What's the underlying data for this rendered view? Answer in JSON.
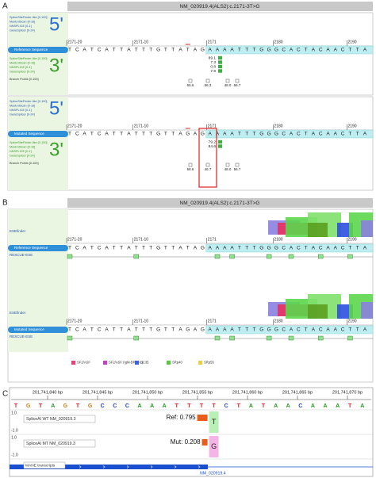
{
  "panel_a": {
    "label": "A",
    "title": "NM_020919.4(ALS2):c.2171-3T>G",
    "positions": [
      "2171-20",
      "2171-10",
      "2171",
      "2180",
      "2190"
    ],
    "reference": {
      "name": "Reference Sequence",
      "labels_5": [
        "SpliceSiteFinder-like [0-100]",
        "MaxEntScan [0-16]",
        "NNSPLICE [0-1]",
        "GeneSplicer [0-24]"
      ],
      "five_prime": "5'",
      "labels_3": [
        "SpliceSiteFinder-like [0-100]",
        "MaxEntScan [0-16]",
        "NNSPLICE [0-1]",
        "GeneSplicer [0-24]"
      ],
      "three_prime": "3'",
      "branch_label": "Branch Points [0-100]",
      "sequence": [
        "T",
        "C",
        "A",
        "T",
        "C",
        "A",
        "T",
        "T",
        "A",
        "T",
        "T",
        "T",
        "G",
        "T",
        "T",
        "A",
        "T",
        "A",
        "G",
        "A",
        "A",
        "A",
        "A",
        "T",
        "T",
        "T",
        "G",
        "G",
        "G",
        "C",
        "A",
        "C",
        "T",
        "A",
        "C",
        "A",
        "A",
        "C",
        "T",
        "T",
        "A"
      ],
      "scores": [
        "89.1",
        "7.3",
        "0.8",
        "7.9"
      ],
      "branch_points": [
        "65.6",
        "56.3",
        "48.0",
        "56.7"
      ]
    },
    "mutated": {
      "name": "Mutated Sequence",
      "labels_5": [
        "SpliceSiteFinder-like [0-100]",
        "MaxEntScan [0-16]",
        "NNSPLICE [0-1]",
        "GeneSplicer [0-24]"
      ],
      "five_prime": "5'",
      "labels_3": [
        "SpliceSiteFinder-like [0-100]",
        "MaxEntScan [0-16]",
        "NNSPLICE [0-1]",
        "GeneSplicer [0-24]"
      ],
      "three_prime": "3'",
      "branch_label": "Branch Points [0-100]",
      "sequence": [
        "T",
        "C",
        "A",
        "T",
        "C",
        "A",
        "T",
        "T",
        "A",
        "T",
        "T",
        "T",
        "G",
        "T",
        "T",
        "A",
        "G",
        "A",
        "G",
        "A",
        "A",
        "A",
        "A",
        "T",
        "T",
        "T",
        "G",
        "G",
        "G",
        "C",
        "A",
        "C",
        "T",
        "A",
        "C",
        "A",
        "A",
        "C",
        "T",
        "T",
        "A"
      ],
      "scores": [
        "79.2",
        "84.6"
      ],
      "branch_points": [
        "58.6",
        "46.7",
        "48.0",
        "56.7"
      ]
    }
  },
  "panel_b": {
    "label": "B",
    "title": "NM_020919.4(ALS2):c.2171-3T>G",
    "positions": [
      "2171-20",
      "2171-10",
      "2171",
      "2180",
      "2190"
    ],
    "reference": {
      "ese_label": "ESEfinder",
      "name": "Reference Sequence",
      "rescue_label": "RESCUE-ESE",
      "sequence": [
        "T",
        "C",
        "A",
        "T",
        "C",
        "A",
        "T",
        "T",
        "A",
        "T",
        "T",
        "T",
        "G",
        "T",
        "T",
        "A",
        "T",
        "A",
        "G",
        "A",
        "A",
        "A",
        "A",
        "T",
        "T",
        "T",
        "G",
        "G",
        "G",
        "C",
        "A",
        "C",
        "T",
        "A",
        "C",
        "A",
        "A",
        "C",
        "T",
        "T",
        "A"
      ]
    },
    "mutated": {
      "ese_label": "ESEfinder",
      "name": "Mutated Sequence",
      "rescue_label": "RESCUE-ESE",
      "sequence": [
        "T",
        "C",
        "A",
        "T",
        "C",
        "A",
        "T",
        "T",
        "A",
        "T",
        "T",
        "T",
        "G",
        "T",
        "T",
        "A",
        "G",
        "A",
        "G",
        "A",
        "A",
        "A",
        "A",
        "T",
        "T",
        "T",
        "G",
        "G",
        "G",
        "C",
        "A",
        "C",
        "T",
        "A",
        "C",
        "A",
        "A",
        "C",
        "T",
        "T",
        "A"
      ]
    },
    "legend": [
      {
        "name": "SF2/ASF",
        "color": "#e8407a"
      },
      {
        "name": "SF2/ASF (IgM-BRCA1)",
        "color": "#c040c8"
      },
      {
        "name": "SC35",
        "color": "#4060e0"
      },
      {
        "name": "SRp40",
        "color": "#58c840"
      },
      {
        "name": "SRp55",
        "color": "#e8d040"
      }
    ]
  },
  "panel_c": {
    "label": "C",
    "coordinates": [
      "201,741,840 bp",
      "201,741,845 bp",
      "201,741,850 bp",
      "201,741,855 bp",
      "201,741,860 bp",
      "201,741,865 bp",
      "201,741,870 bp"
    ],
    "base_colors": {
      "A": "#1d9a1d",
      "C": "#2040d0",
      "G": "#d07a10",
      "T": "#d82020"
    },
    "sequence": [
      "T",
      "G",
      "T",
      "A",
      "G",
      "T",
      "G",
      "C",
      "C",
      "C",
      "A",
      "A",
      "A",
      "T",
      "T",
      "T",
      "T",
      "C",
      "T",
      "A",
      "T",
      "A",
      "A",
      "C",
      "A",
      "A",
      "A",
      "T",
      "A"
    ],
    "tracks": [
      {
        "name": "SpliceAI WT NM_020919.3",
        "max": "1.0",
        "min": "-1.0",
        "score": "Ref: 0.795",
        "base": "T"
      },
      {
        "name": "SpliceAI MT NM_020919.3",
        "max": "1.0",
        "min": "-1.0",
        "score": "Mut: 0.208",
        "base": "G"
      }
    ],
    "transcripts": "MANE transcripts",
    "transcript_id": "NM_020919.4"
  }
}
